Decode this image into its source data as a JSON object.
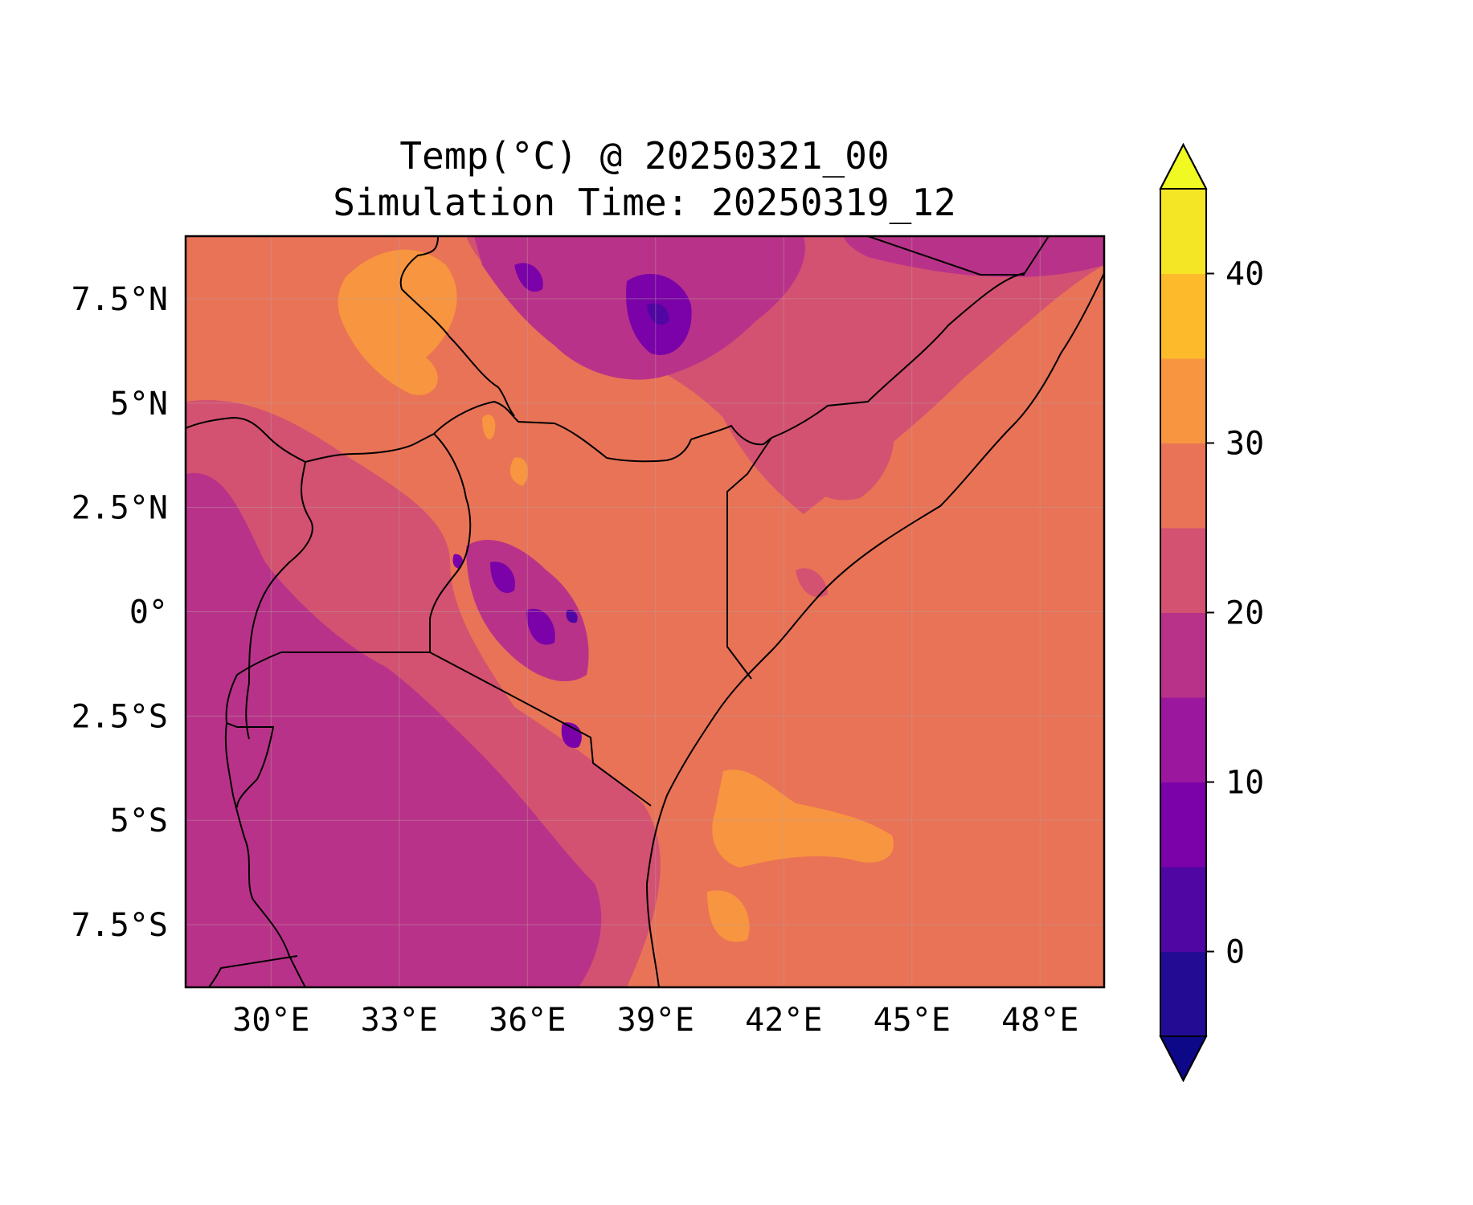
{
  "title": {
    "line1": "Temp(°C) @ 20250321_00",
    "line2": "Simulation Time: 20250319_12"
  },
  "map": {
    "lon_range": [
      28.0,
      49.5
    ],
    "lat_range": [
      -9.0,
      9.0
    ],
    "xticks": [
      {
        "value": 30,
        "label": "30°E"
      },
      {
        "value": 33,
        "label": "33°E"
      },
      {
        "value": 36,
        "label": "36°E"
      },
      {
        "value": 39,
        "label": "39°E"
      },
      {
        "value": 42,
        "label": "42°E"
      },
      {
        "value": 45,
        "label": "45°E"
      },
      {
        "value": 48,
        "label": "48°E"
      }
    ],
    "yticks": [
      {
        "value": 7.5,
        "label": "7.5°N"
      },
      {
        "value": 5,
        "label": "5°N"
      },
      {
        "value": 2.5,
        "label": "2.5°N"
      },
      {
        "value": 0,
        "label": "0°"
      },
      {
        "value": -2.5,
        "label": "2.5°S"
      },
      {
        "value": -5,
        "label": "5°S"
      },
      {
        "value": -7.5,
        "label": "7.5°S"
      }
    ],
    "grid": true,
    "background_color": "#e97356"
  },
  "colorbar": {
    "levels": [
      -5,
      0,
      5,
      10,
      15,
      20,
      25,
      30,
      35,
      40,
      45
    ],
    "colors": [
      "#230b94",
      "#4f06a2",
      "#7a02a8",
      "#9b179e",
      "#b93289",
      "#d35171",
      "#e97356",
      "#f89540",
      "#fdbb2b",
      "#f5e625"
    ],
    "under_color": "#0d0887",
    "over_color": "#f0f921",
    "ticks": [
      {
        "value": 0,
        "label": "0"
      },
      {
        "value": 10,
        "label": "10"
      },
      {
        "value": 20,
        "label": "20"
      },
      {
        "value": 30,
        "label": "30"
      },
      {
        "value": 40,
        "label": "40"
      }
    ],
    "extend": "both",
    "placement": "right"
  }
}
